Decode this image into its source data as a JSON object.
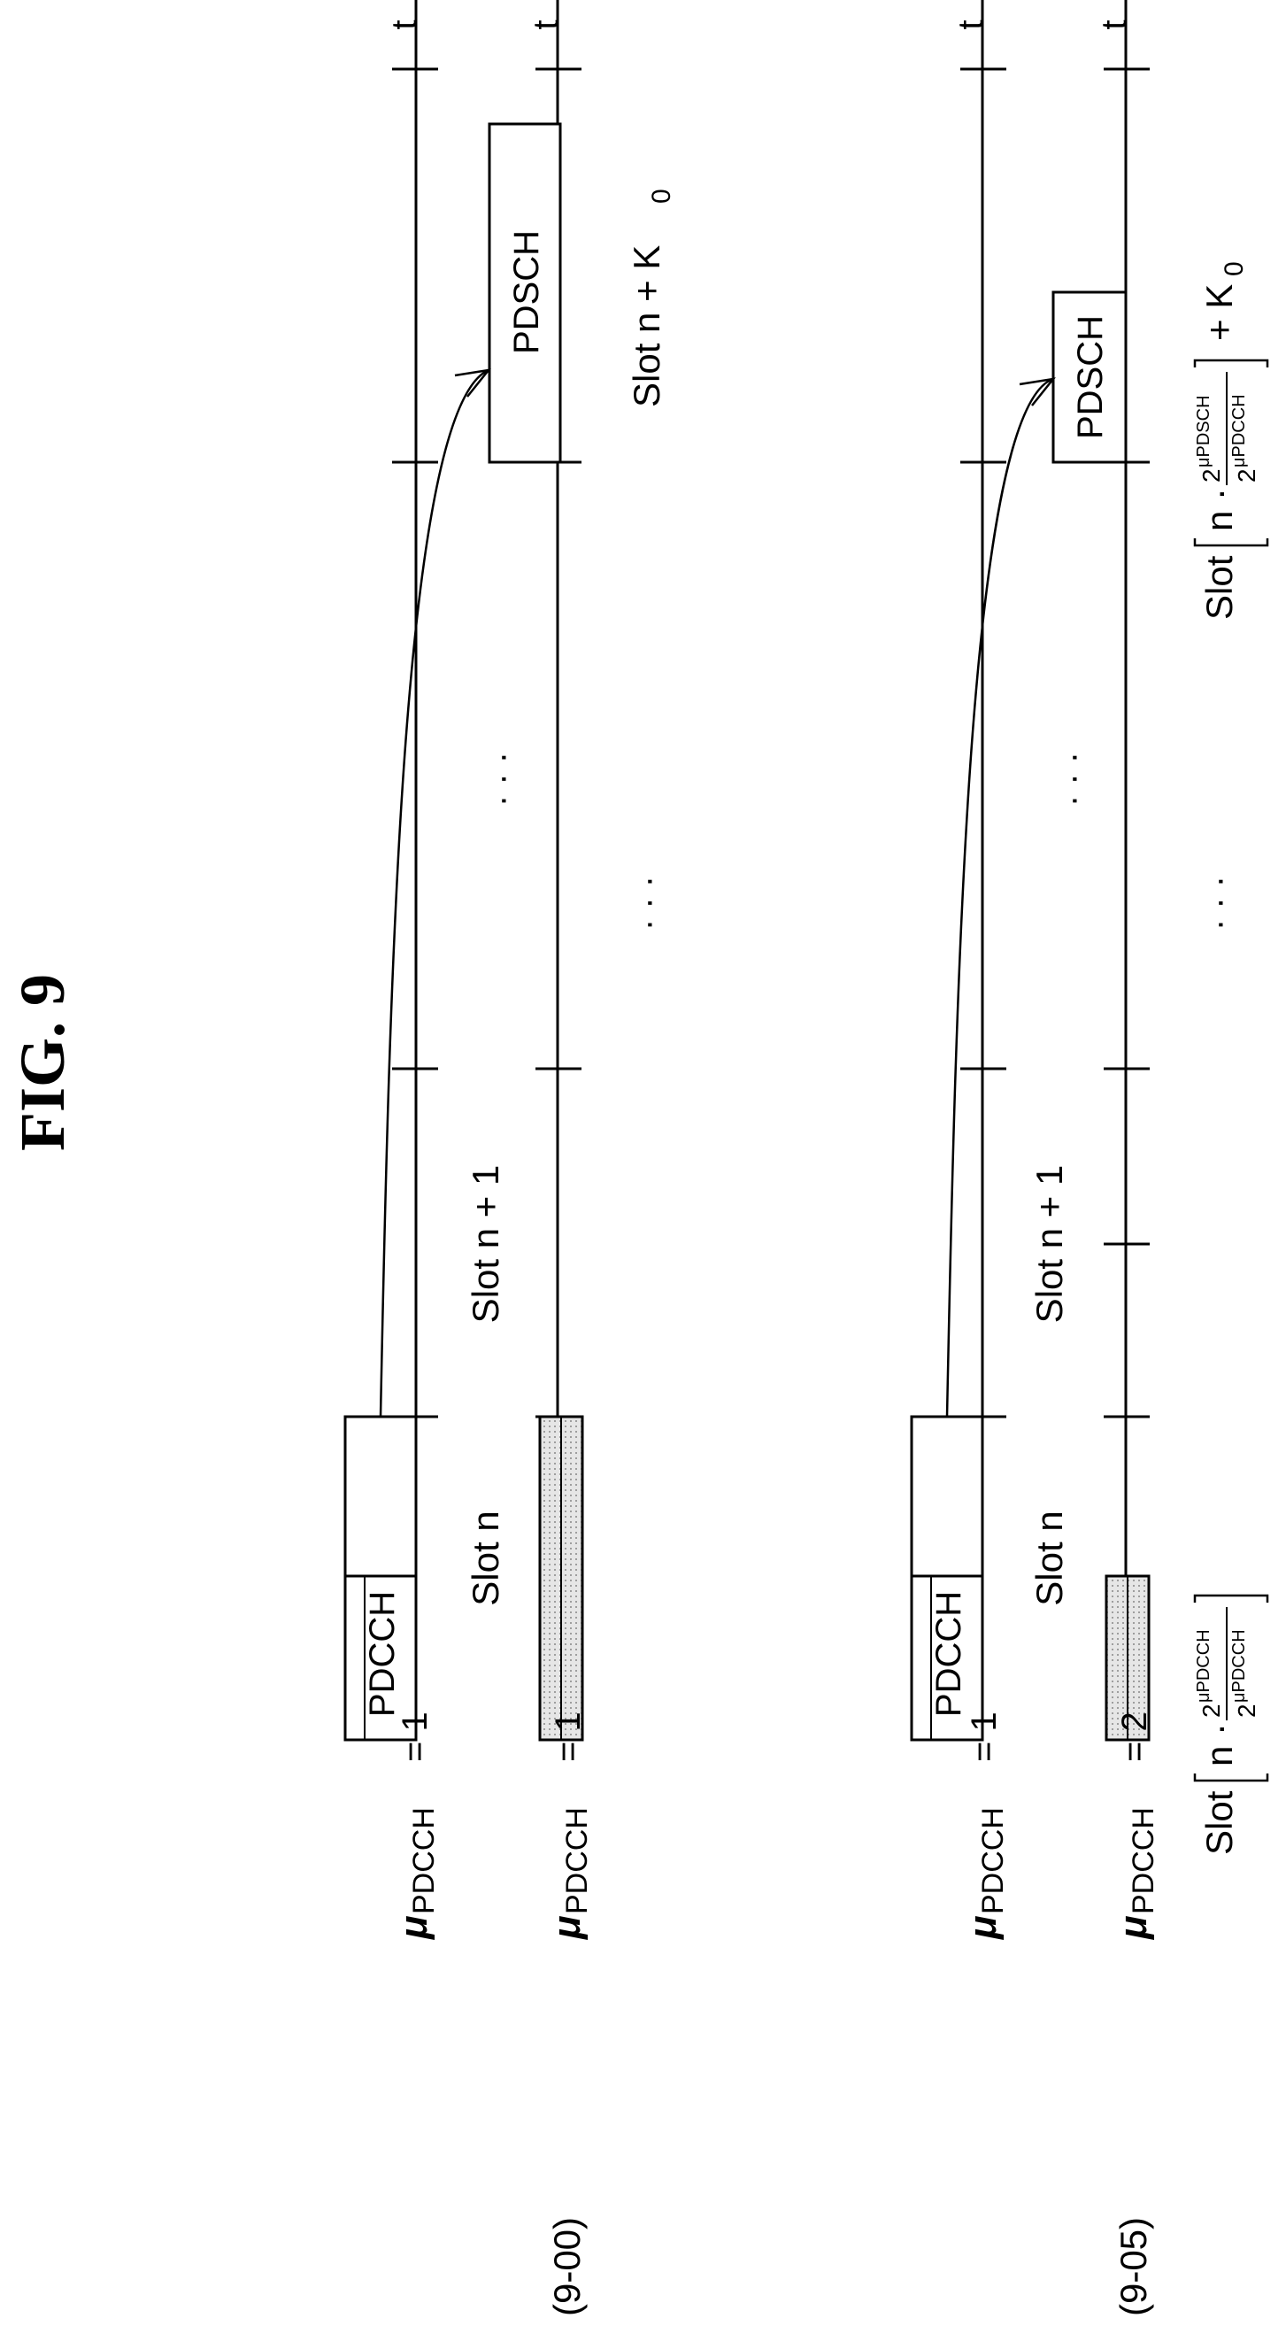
{
  "figure": {
    "title": "FIG. 9"
  },
  "axis_label": "t",
  "numerology": {
    "mu": "μ",
    "subscript": "PDCCH"
  },
  "section_a": {
    "label": "(9-00)",
    "row1_eq": "= 1",
    "row2_eq": "= 1",
    "pdcch_label": "PDCCH",
    "pdsch_label": "PDSCH",
    "slot_n": "Slot n",
    "slot_n1": "Slot n + 1",
    "slot_k_prefix": "Slot n + K",
    "slot_k_sub": "0",
    "ellipsis": "· · ·"
  },
  "section_b": {
    "label": "(9-05)",
    "row1_eq": "= 1",
    "row2_eq": "= 2",
    "pdcch_label": "PDCCH",
    "pdsch_label": "PDSCH",
    "slot_n": "Slot n",
    "slot_n1": "Slot n + 1",
    "ellipsis": "· · ·",
    "formula_left": {
      "slot": "Slot",
      "n": "n ·",
      "num_base": "2",
      "num_sup": "μPDCCH",
      "den_base": "2",
      "den_sup": "μPDCCH"
    },
    "formula_right": {
      "slot": "Slot",
      "n": "n ·",
      "num_base": "2",
      "num_sup": "μPDSCH",
      "den_base": "2",
      "den_sup": "μPDCCH",
      "plus_k": "+ K",
      "k_sub": "0"
    }
  }
}
